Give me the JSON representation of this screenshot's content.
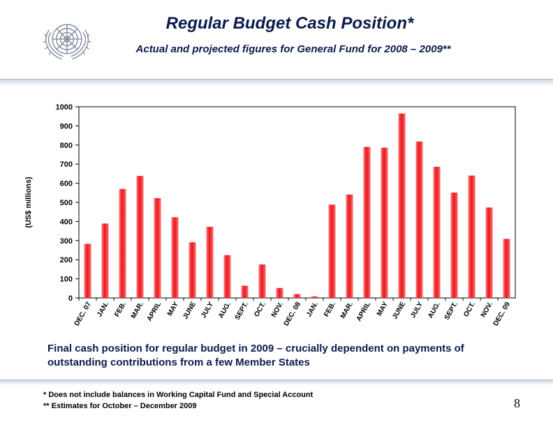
{
  "header": {
    "title": "Regular Budget Cash Position*",
    "subtitle": "Actual and projected figures for General Fund for 2008 – 2009**"
  },
  "logo": {
    "icon": "un-emblem-icon"
  },
  "chart_data": {
    "type": "bar",
    "ylabel": "(US$ millions)",
    "xlabel": "",
    "ylim": [
      0,
      1000
    ],
    "yticks": [
      0,
      100,
      200,
      300,
      400,
      500,
      600,
      700,
      800,
      900,
      1000
    ],
    "grid": false,
    "legend": "none",
    "bar_color": "#e8171e",
    "categories": [
      "DEC. 07",
      "JAN.",
      "FEB.",
      "MAR.",
      "APRIL",
      "MAY",
      "JUNE",
      "JULY",
      "AUG.",
      "SEPT.",
      "OCT.",
      "NOV.",
      "DEC. 08",
      "JAN.",
      "FEB.",
      "MAR.",
      "APRIL",
      "MAY",
      "JUNE",
      "JULY",
      "AUG.",
      "SEPT.",
      "OCT.",
      "NOV.",
      "DEC. 09"
    ],
    "values": [
      283,
      389,
      570,
      638,
      522,
      422,
      291,
      372,
      224,
      64,
      175,
      52,
      20,
      8,
      488,
      541,
      790,
      786,
      965,
      818,
      686,
      551,
      640,
      473,
      309
    ]
  },
  "notes": {
    "main": "Final cash position for regular budget in 2009 – crucially dependent on payments of outstanding contributions from a few Member States",
    "footnote_1": "* Does not include balances in Working Capital Fund and Special Account",
    "footnote_2": "** Estimates for October – December 2009"
  },
  "page": {
    "number": "8"
  }
}
